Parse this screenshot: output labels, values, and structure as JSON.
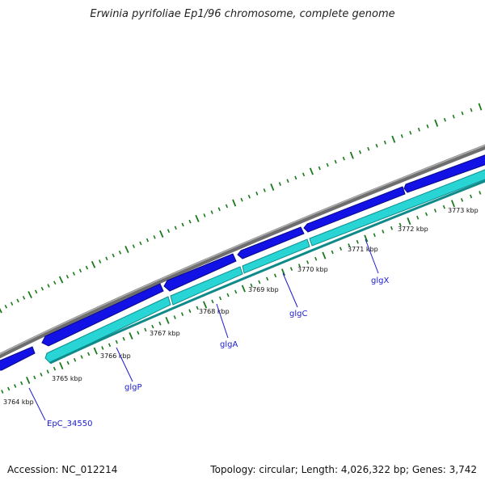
{
  "title": "Erwinia pyrifoliae Ep1/96 chromosome, complete genome",
  "footer": {
    "accession": "Accession: NC_012214",
    "summary": "Topology: circular; Length: 4,026,322 bp; Genes: 3,742"
  },
  "colors": {
    "backbone": "#8a8a8a",
    "forward_cds": "#1010e0",
    "reverse_cds": "#20d0d0",
    "ticks": "#1a7a1a",
    "gene_label": "#1a1ad0"
  },
  "kbp_labels": [
    "3764 kbp",
    "3765 kbp",
    "3766 kbp",
    "3767 kbp",
    "3768 kbp",
    "3769 kbp",
    "3770 kbp",
    "3771 kbp",
    "3772 kbp",
    "3773 kbp"
  ],
  "genes": [
    {
      "name": "EpC_34550"
    },
    {
      "name": "glgP"
    },
    {
      "name": "glgA"
    },
    {
      "name": "glgC"
    },
    {
      "name": "glgX"
    }
  ]
}
